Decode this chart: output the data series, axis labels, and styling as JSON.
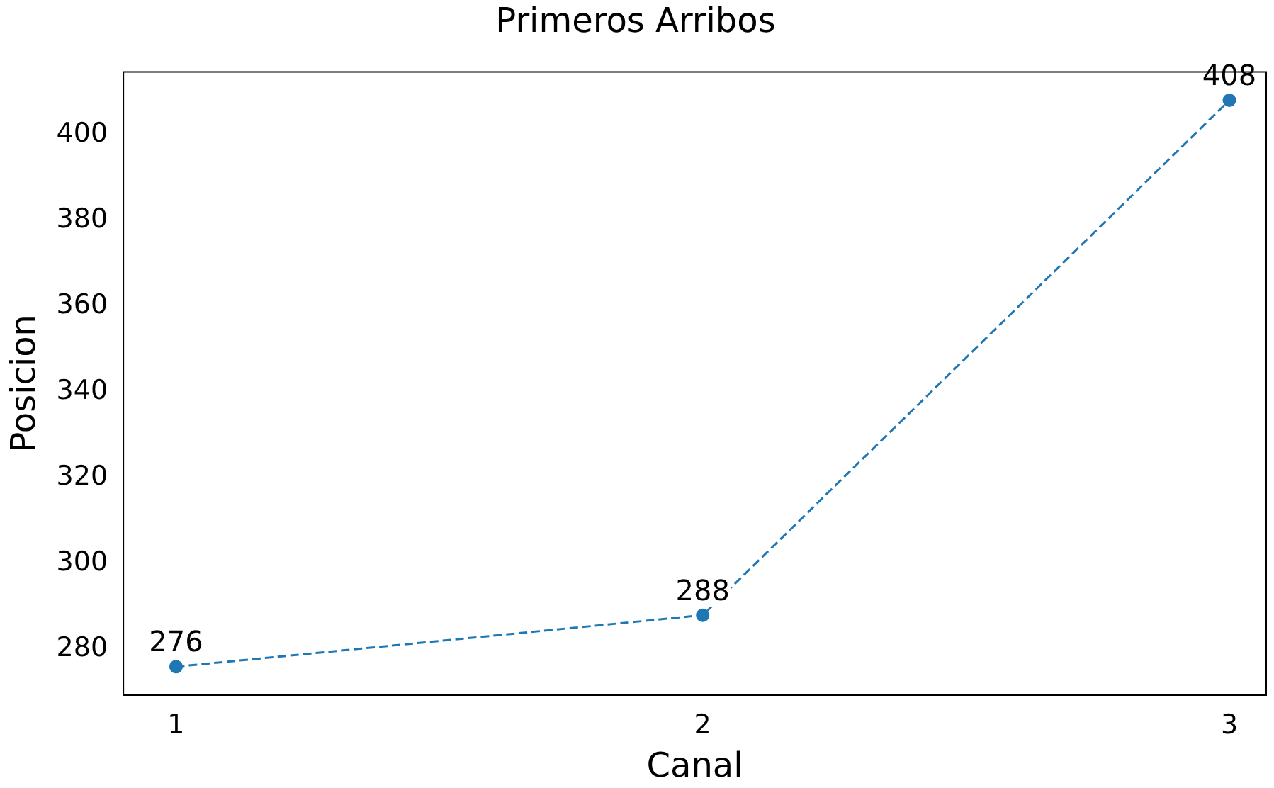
{
  "chart_data": {
    "type": "line",
    "title": "Primeros Arribos",
    "xlabel": "Canal",
    "ylabel": "Posicion",
    "x": [
      1,
      2,
      3
    ],
    "series": [
      {
        "color": "#1f77b4",
        "values": [
          276,
          288,
          408
        ]
      }
    ],
    "xlim": [
      0.9,
      3.07
    ],
    "xticks": [
      1,
      2,
      3
    ],
    "ylim": [
      269.4,
      414.6
    ],
    "yticks": [
      280,
      300,
      320,
      340,
      360,
      380,
      400
    ],
    "marker": "circle",
    "line_style": "dashed",
    "data_labels": true,
    "grid": false,
    "legend": false
  }
}
